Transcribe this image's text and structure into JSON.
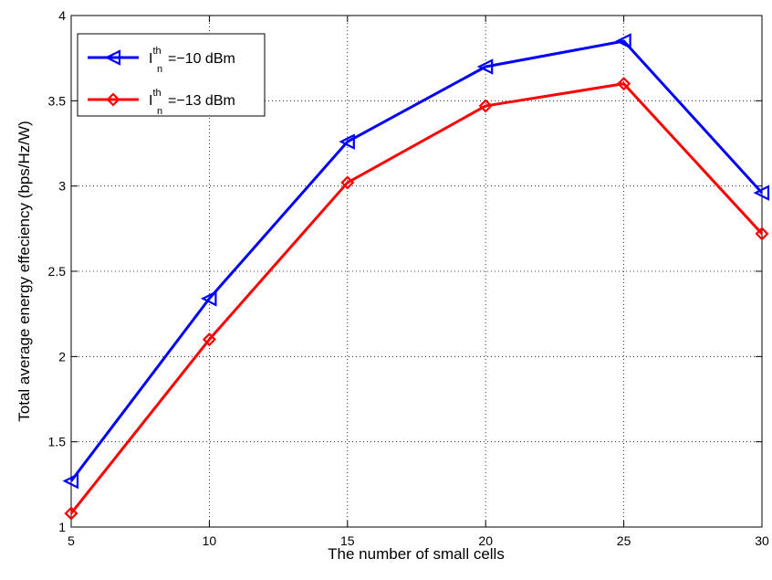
{
  "chart_data": {
    "type": "line",
    "title": "",
    "xlabel": "The number of small cells",
    "ylabel": "Total average energy effeciency (bps/Hz/W)",
    "x": [
      5,
      10,
      15,
      20,
      25,
      30
    ],
    "xlim": [
      5,
      30
    ],
    "ylim": [
      1,
      4
    ],
    "xticks": [
      5,
      10,
      15,
      20,
      25,
      30
    ],
    "yticks": [
      1,
      1.5,
      2,
      2.5,
      3,
      3.5,
      4
    ],
    "xtick_labels": [
      "5",
      "10",
      "15",
      "20",
      "25",
      "30"
    ],
    "ytick_labels": [
      "1",
      "1.5",
      "2",
      "2.5",
      "3",
      "3.5",
      "4"
    ],
    "grid": true,
    "legend_position": "top-left",
    "series": [
      {
        "name_main": "I",
        "name_sup": "th",
        "name_sub": "n",
        "name_tail": "=−10 dBm",
        "color": "#0000ff",
        "marker": "triangle-left",
        "values": [
          1.27,
          2.34,
          3.26,
          3.7,
          3.85,
          2.96
        ]
      },
      {
        "name_main": "I",
        "name_sup": "th",
        "name_sub": "n",
        "name_tail": "=−13 dBm",
        "color": "#ff0000",
        "marker": "diamond",
        "values": [
          1.08,
          2.1,
          3.02,
          3.47,
          3.6,
          2.72
        ]
      }
    ]
  }
}
